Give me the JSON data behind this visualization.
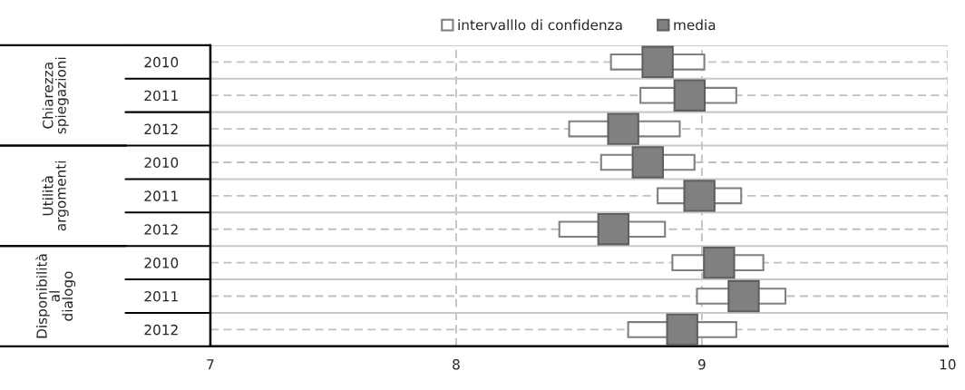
{
  "chart_data": {
    "type": "bar",
    "orientation": "horizontal",
    "categories": [
      "2010",
      "2011",
      "2012",
      "2010",
      "2011",
      "2012",
      "2010",
      "2011",
      "2012"
    ],
    "series": [
      {
        "name": "intervalllo di confidenza",
        "color": "#ffffff",
        "base": [
          8.63,
          8.75,
          8.46,
          8.59,
          8.82,
          8.42,
          8.88,
          8.98,
          8.7
        ],
        "values": [
          0.38,
          0.39,
          0.45,
          0.38,
          0.34,
          0.43,
          0.37,
          0.36,
          0.44
        ]
      },
      {
        "name": "media",
        "type": "scatter",
        "marker": "square",
        "color": "#808080",
        "values": [
          8.82,
          8.95,
          8.68,
          8.78,
          8.99,
          8.64,
          9.07,
          9.17,
          8.92
        ]
      }
    ],
    "annotations": [
      "Chiarezza\nspiegazioni",
      "Utilità\nargomenti",
      "Disponibilità\nal\ndialogo"
    ],
    "xlim": [
      7,
      10
    ],
    "xticks": [
      7,
      8,
      9,
      10
    ],
    "grid": true,
    "legend": "top"
  }
}
